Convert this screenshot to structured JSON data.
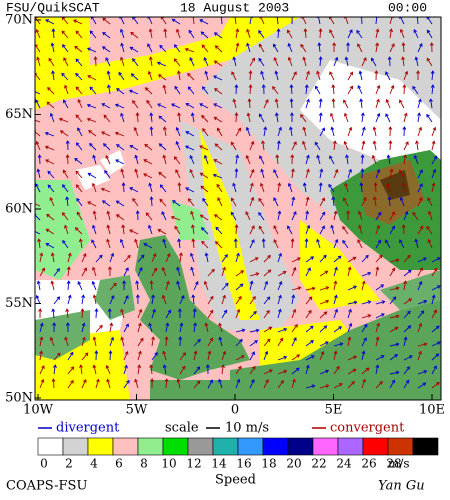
{
  "header": {
    "title": "FSU/QuikSCAT",
    "date": "18 August 2003",
    "time": "00:00"
  },
  "map": {
    "lat_labels": [
      "70N",
      "65N",
      "60N",
      "55N",
      "50N"
    ],
    "lon_labels": [
      "10W",
      "5W",
      "0",
      "5E",
      "10E"
    ]
  },
  "legend": {
    "divergent": "divergent",
    "scale": "scale",
    "scale_value": "10 m/s",
    "convergent": "convergent"
  },
  "colorbar": {
    "labels": [
      "0",
      "2",
      "4",
      "6",
      "8",
      "10",
      "12",
      "14",
      "16",
      "18",
      "20",
      "22",
      "24",
      "26",
      "28"
    ],
    "unit": "m/s",
    "title": "Speed",
    "colors": [
      "#ffffff",
      "#d3d3d3",
      "#ffff00",
      "#ffc0c0",
      "#90ee90",
      "#00dd00",
      "#999999",
      "#20b2aa",
      "#3399ff",
      "#0000ff",
      "#000088",
      "#ff66ff",
      "#aa66ff",
      "#ff0000",
      "#cc3300",
      "#000000"
    ]
  },
  "footer": {
    "left": "COAPS-FSU",
    "right": "Yan Gu"
  }
}
